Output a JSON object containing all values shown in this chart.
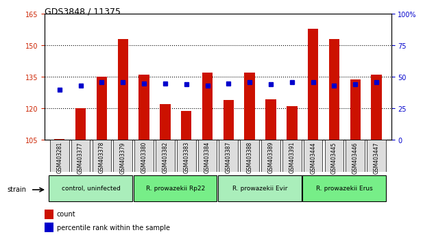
{
  "title": "GDS3848 / 11375",
  "samples": [
    "GSM403281",
    "GSM403377",
    "GSM403378",
    "GSM403379",
    "GSM403380",
    "GSM403382",
    "GSM403383",
    "GSM403384",
    "GSM403387",
    "GSM403388",
    "GSM403389",
    "GSM403391",
    "GSM403444",
    "GSM403445",
    "GSM403446",
    "GSM403447"
  ],
  "counts": [
    105.5,
    120.0,
    135.0,
    153.0,
    136.0,
    122.0,
    119.0,
    137.0,
    124.0,
    137.0,
    124.5,
    121.0,
    158.0,
    153.0,
    134.0,
    136.0
  ],
  "percentiles_pct": [
    40,
    43,
    46,
    46,
    45,
    45,
    44,
    43,
    45,
    46,
    44,
    46,
    46,
    43,
    44,
    46
  ],
  "groups": [
    {
      "label": "control, uninfected",
      "start": 0,
      "end": 4,
      "color": "#aaeebb"
    },
    {
      "label": "R. prowazekii Rp22",
      "start": 4,
      "end": 8,
      "color": "#77ee88"
    },
    {
      "label": "R. prowazekii Evir",
      "start": 8,
      "end": 12,
      "color": "#aaeebb"
    },
    {
      "label": "R. prowazekii Erus",
      "start": 12,
      "end": 16,
      "color": "#77ee88"
    }
  ],
  "ylim_left": [
    105,
    165
  ],
  "ylim_right": [
    0,
    100
  ],
  "yticks_left": [
    105,
    120,
    135,
    150,
    165
  ],
  "yticks_right": [
    0,
    25,
    50,
    75,
    100
  ],
  "bar_color": "#cc1100",
  "dot_color": "#0000cc",
  "bar_bottom": 105,
  "background_color": "#ffffff",
  "grid_color": "#000000",
  "tick_label_color_left": "#cc2200",
  "tick_label_color_right": "#0000cc",
  "strain_label": "strain",
  "legend_count": "count",
  "legend_pct": "percentile rank within the sample"
}
